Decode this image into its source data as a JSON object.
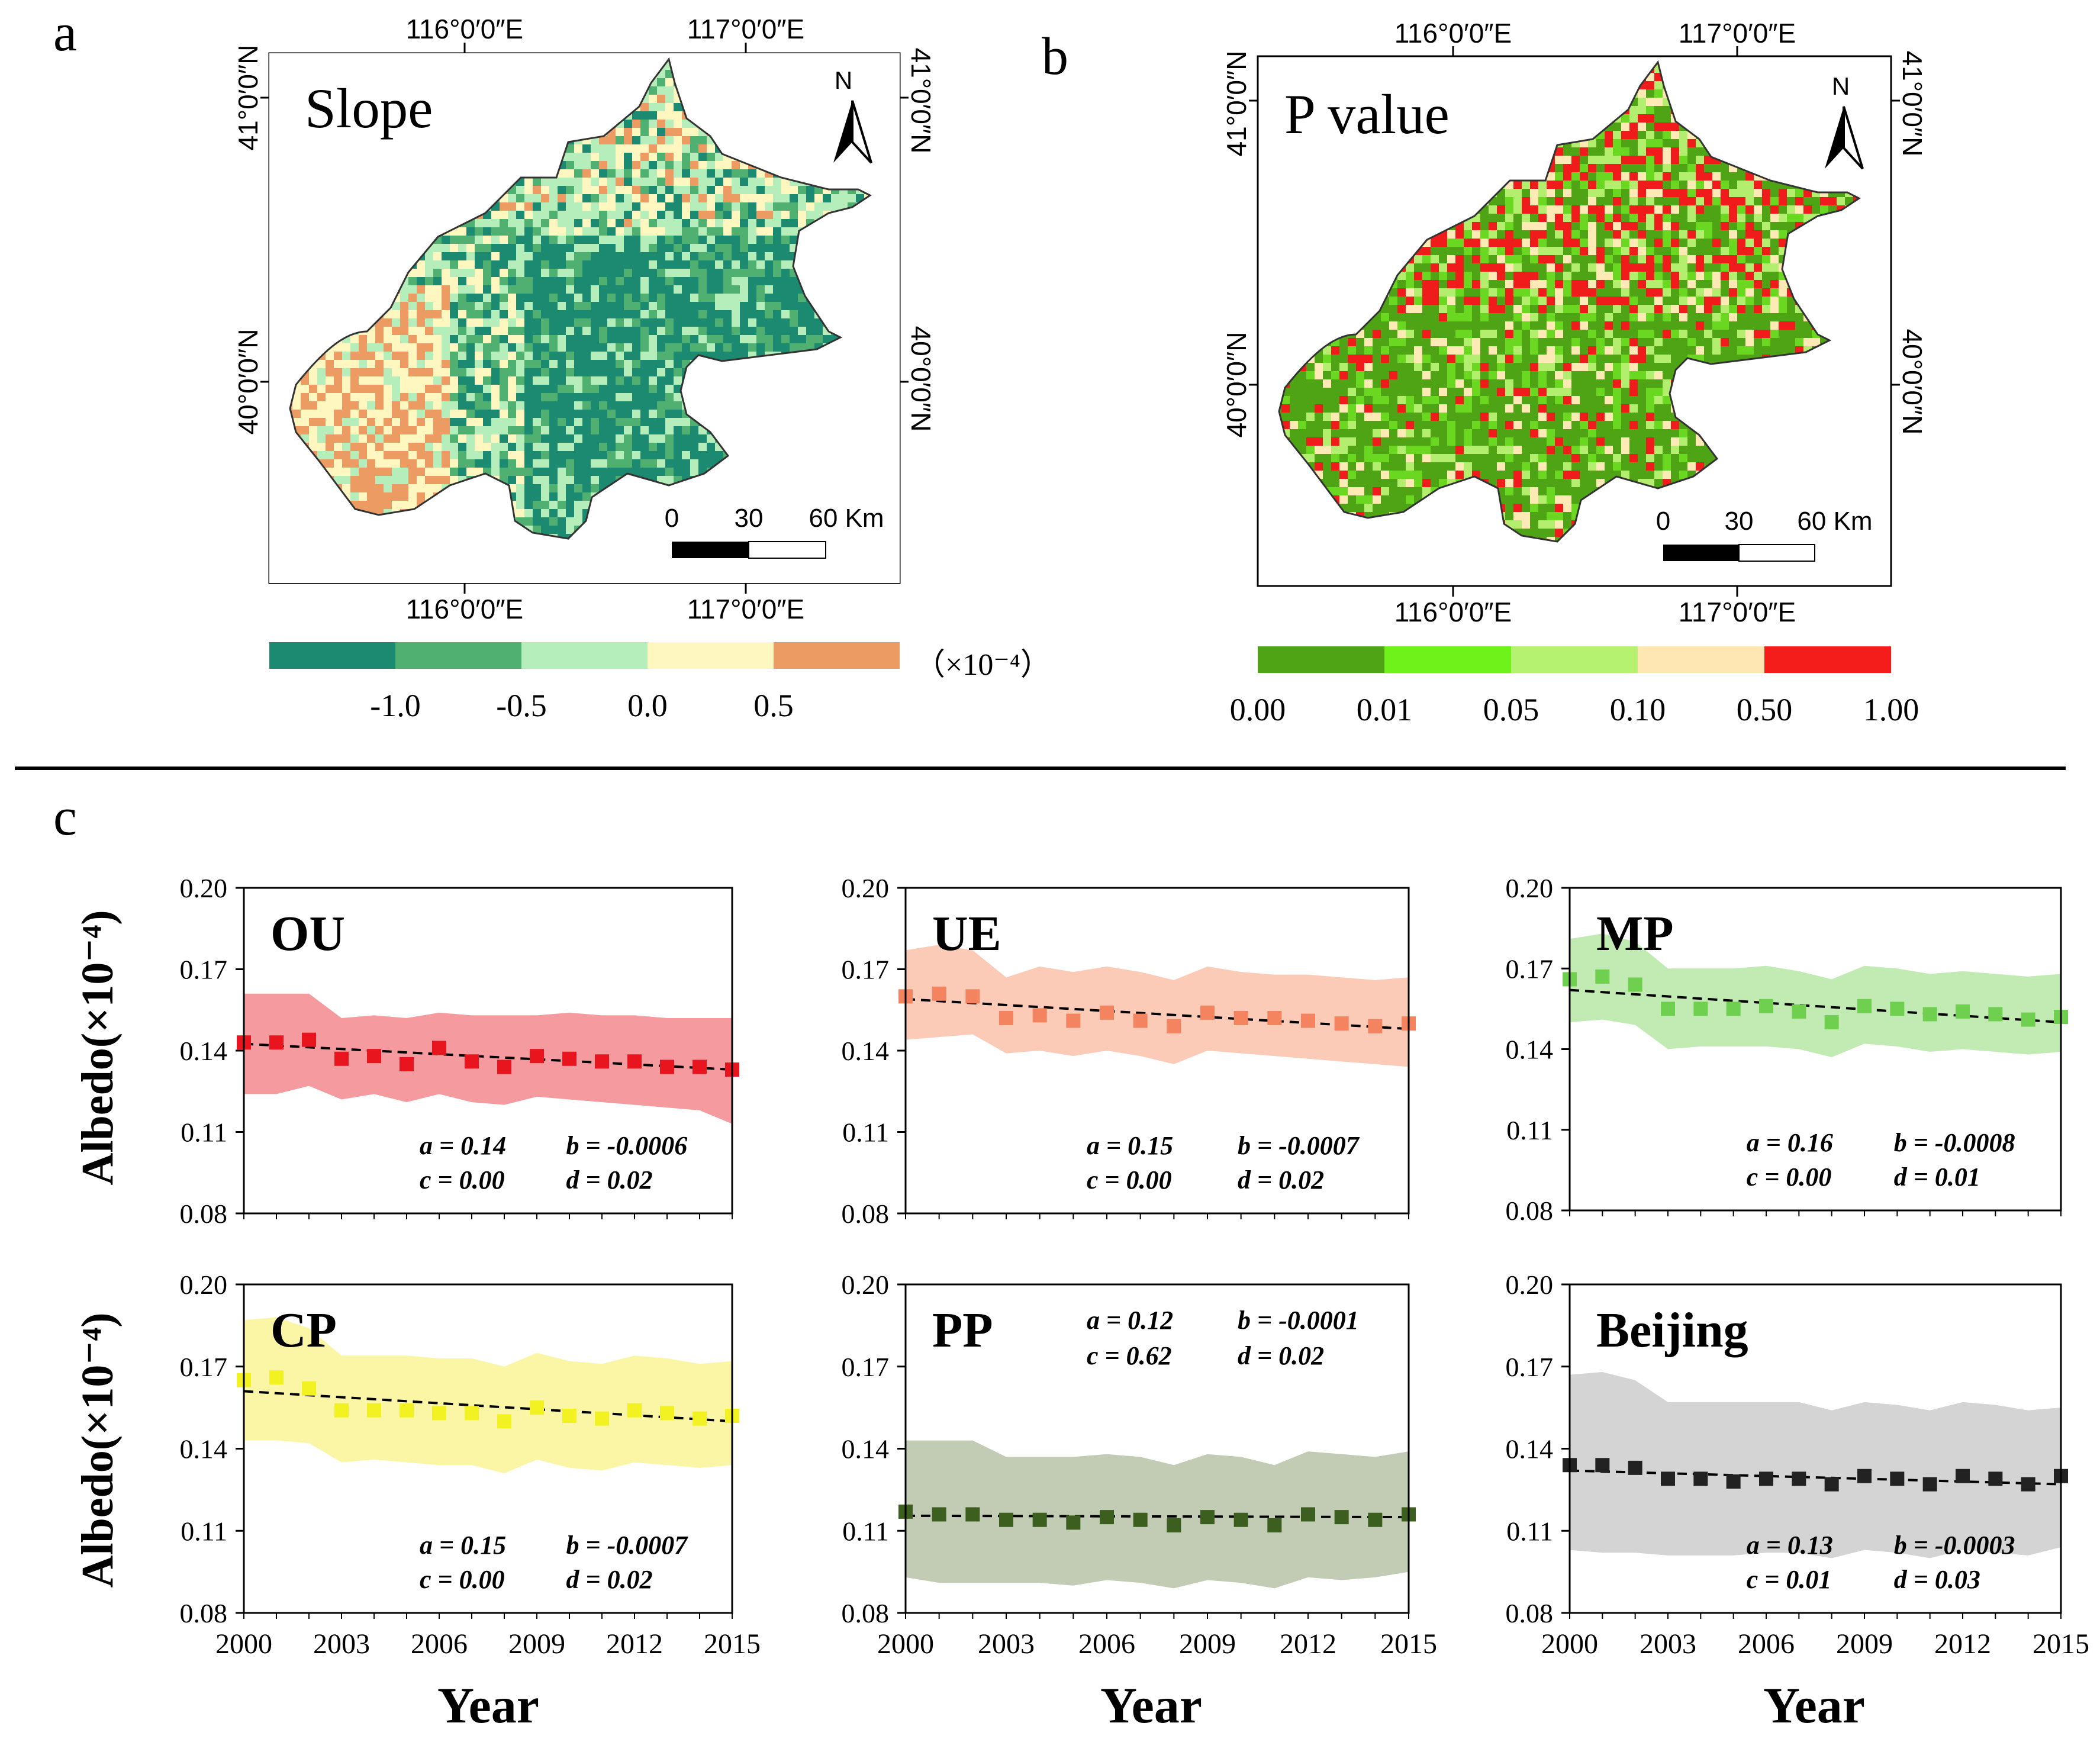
{
  "panel_labels": {
    "a": "a",
    "b": "b",
    "c": "c"
  },
  "maps": [
    {
      "id": "a",
      "title": "Slope",
      "north": "N",
      "lon_top": [
        "116°0′0″E",
        "117°0′0″E"
      ],
      "lon_bottom": [
        "116°0′0″E",
        "117°0′0″E"
      ],
      "lat_left": [
        "41°0′0″N",
        "40°0′0″N"
      ],
      "lat_right": [
        "41°0′0″N",
        "40°0′0″N"
      ],
      "scale_labels": [
        "0",
        "30",
        "60 Km"
      ],
      "palette": [
        "#1b8a70",
        "#4fb072",
        "#b6eebb",
        "#fff6c0",
        "#ec9b63"
      ],
      "legend_colors": [
        "#1b8a70",
        "#4fb072",
        "#b6eebb",
        "#fff6c0",
        "#ec9b63"
      ],
      "legend_ticks": [
        "-1.0",
        "-0.5",
        "0.0",
        "0.5"
      ],
      "legend_unit": "（×10⁻⁴）"
    },
    {
      "id": "b",
      "title": "P value",
      "north": "N",
      "lon_top": [
        "116°0′0″E",
        "117°0′0″E"
      ],
      "lon_bottom": [
        "116°0′0″E",
        "117°0′0″E"
      ],
      "lat_left": [
        "41°0′0″N",
        "40°0′0″N"
      ],
      "lat_right": [
        "41°0′0″N",
        "40°0′0″N"
      ],
      "scale_labels": [
        "0",
        "30",
        "60 Km"
      ],
      "palette": [
        "#4ea414",
        "#4ea414",
        "#6ad821",
        "#b4ee6e",
        "#ffe9b4",
        "#f01c1c"
      ],
      "legend_colors": [
        "#4ea414",
        "#6ef21a",
        "#b4f270",
        "#ffe7b4",
        "#f51c1c"
      ],
      "legend_ticks": [
        "0.00",
        "0.01",
        "0.05",
        "0.10",
        "0.50",
        "1.00"
      ],
      "legend_unit": ""
    }
  ],
  "axes_text": {
    "ylabel": "Albedo(×10⁻⁴)",
    "xlabel": "Year"
  },
  "chart_data": [
    {
      "type": "scatter",
      "title": "OU",
      "marker": "#e8141e",
      "band": "#f59a9e",
      "x": [
        2000,
        2001,
        2002,
        2003,
        2004,
        2005,
        2006,
        2007,
        2008,
        2009,
        2010,
        2011,
        2012,
        2013,
        2014,
        2015
      ],
      "values": [
        0.143,
        0.143,
        0.144,
        0.137,
        0.138,
        0.135,
        0.141,
        0.136,
        0.134,
        0.138,
        0.137,
        0.136,
        0.136,
        0.134,
        0.134,
        0.133
      ],
      "band_upper": [
        0.161,
        0.161,
        0.161,
        0.152,
        0.153,
        0.152,
        0.154,
        0.153,
        0.153,
        0.153,
        0.154,
        0.153,
        0.153,
        0.152,
        0.152,
        0.152
      ],
      "band_lower": [
        0.124,
        0.124,
        0.127,
        0.122,
        0.124,
        0.121,
        0.124,
        0.121,
        0.12,
        0.123,
        0.122,
        0.121,
        0.12,
        0.119,
        0.118,
        0.113
      ],
      "trend": [
        0.1425,
        0.133
      ],
      "stats": [
        [
          "a = 0.14",
          "b = -0.0006"
        ],
        [
          "c = 0.00",
          "d = 0.02"
        ]
      ],
      "stats_pos": "bottom",
      "ylim": [
        0.08,
        0.2
      ],
      "yticks": [
        "0.20",
        "0.17",
        "0.14",
        "0.11",
        "0.08"
      ],
      "xticks": [
        "2000",
        "2003",
        "2006",
        "2009",
        "2012",
        "2015"
      ],
      "show_xticks": false
    },
    {
      "type": "scatter",
      "title": "UE",
      "marker": "#f4845f",
      "band": "#fbcbb8",
      "x": [
        2000,
        2001,
        2002,
        2003,
        2004,
        2005,
        2006,
        2007,
        2008,
        2009,
        2010,
        2011,
        2012,
        2013,
        2014,
        2015
      ],
      "values": [
        0.16,
        0.161,
        0.16,
        0.152,
        0.153,
        0.151,
        0.154,
        0.151,
        0.149,
        0.154,
        0.152,
        0.152,
        0.151,
        0.15,
        0.149,
        0.15
      ],
      "band_upper": [
        0.177,
        0.179,
        0.177,
        0.167,
        0.171,
        0.169,
        0.171,
        0.169,
        0.166,
        0.171,
        0.169,
        0.168,
        0.168,
        0.167,
        0.166,
        0.167
      ],
      "band_lower": [
        0.144,
        0.145,
        0.146,
        0.139,
        0.14,
        0.138,
        0.14,
        0.138,
        0.135,
        0.14,
        0.139,
        0.138,
        0.137,
        0.136,
        0.135,
        0.134
      ],
      "trend": [
        0.159,
        0.148
      ],
      "stats": [
        [
          "a = 0.15",
          "b = -0.0007"
        ],
        [
          "c = 0.00",
          "d = 0.02"
        ]
      ],
      "stats_pos": "bottom",
      "ylim": [
        0.08,
        0.2
      ],
      "yticks": [
        "0.20",
        "0.17",
        "0.14",
        "0.11",
        "0.08"
      ],
      "xticks": [
        "2000",
        "2003",
        "2006",
        "2009",
        "2012",
        "2015"
      ],
      "show_xticks": false
    },
    {
      "type": "scatter",
      "title": "MP",
      "marker": "#6fcf4e",
      "band": "#c2ebb4",
      "x": [
        2000,
        2001,
        2002,
        2003,
        2004,
        2005,
        2006,
        2007,
        2008,
        2009,
        2010,
        2011,
        2012,
        2013,
        2014,
        2015
      ],
      "values": [
        0.166,
        0.167,
        0.164,
        0.155,
        0.155,
        0.155,
        0.156,
        0.154,
        0.15,
        0.156,
        0.155,
        0.153,
        0.154,
        0.153,
        0.151,
        0.152
      ],
      "band_upper": [
        0.181,
        0.183,
        0.18,
        0.17,
        0.17,
        0.17,
        0.171,
        0.169,
        0.166,
        0.171,
        0.17,
        0.168,
        0.169,
        0.168,
        0.167,
        0.168
      ],
      "band_lower": [
        0.15,
        0.151,
        0.149,
        0.14,
        0.141,
        0.141,
        0.141,
        0.14,
        0.137,
        0.142,
        0.141,
        0.139,
        0.14,
        0.139,
        0.138,
        0.139
      ],
      "trend": [
        0.162,
        0.15
      ],
      "stats": [
        [
          "a = 0.16",
          "b = -0.0008"
        ],
        [
          "c = 0.00",
          "d = 0.01"
        ]
      ],
      "stats_pos": "bottom",
      "ylim": [
        0.08,
        0.2
      ],
      "yticks": [
        "0.20",
        "0.17",
        "0.14",
        "0.11",
        "0.08"
      ],
      "xticks": [
        "2000",
        "2003",
        "2006",
        "2009",
        "2012",
        "2015"
      ],
      "show_xticks": false
    },
    {
      "type": "scatter",
      "title": "CP",
      "marker": "#f2f222",
      "band": "#fbf6a6",
      "x": [
        2000,
        2001,
        2002,
        2003,
        2004,
        2005,
        2006,
        2007,
        2008,
        2009,
        2010,
        2011,
        2012,
        2013,
        2014,
        2015
      ],
      "values": [
        0.165,
        0.166,
        0.162,
        0.154,
        0.154,
        0.154,
        0.153,
        0.153,
        0.15,
        0.155,
        0.152,
        0.151,
        0.154,
        0.153,
        0.151,
        0.152
      ],
      "band_upper": [
        0.187,
        0.188,
        0.184,
        0.174,
        0.174,
        0.174,
        0.173,
        0.173,
        0.17,
        0.175,
        0.172,
        0.171,
        0.174,
        0.173,
        0.171,
        0.172
      ],
      "band_lower": [
        0.143,
        0.143,
        0.142,
        0.135,
        0.136,
        0.135,
        0.134,
        0.134,
        0.131,
        0.136,
        0.133,
        0.132,
        0.135,
        0.134,
        0.133,
        0.134
      ],
      "trend": [
        0.161,
        0.15
      ],
      "stats": [
        [
          "a = 0.15",
          "b = -0.0007"
        ],
        [
          "c = 0.00",
          "d = 0.02"
        ]
      ],
      "stats_pos": "bottom",
      "ylim": [
        0.08,
        0.2
      ],
      "yticks": [
        "0.20",
        "0.17",
        "0.14",
        "0.11",
        "0.08"
      ],
      "xticks": [
        "2000",
        "2003",
        "2006",
        "2009",
        "2012",
        "2015"
      ],
      "show_xticks": true
    },
    {
      "type": "scatter",
      "title": "PP",
      "marker": "#3c5e1e",
      "band": "#c2cbb4",
      "x": [
        2000,
        2001,
        2002,
        2003,
        2004,
        2005,
        2006,
        2007,
        2008,
        2009,
        2010,
        2011,
        2012,
        2013,
        2014,
        2015
      ],
      "values": [
        0.117,
        0.116,
        0.116,
        0.114,
        0.114,
        0.113,
        0.115,
        0.114,
        0.112,
        0.115,
        0.114,
        0.112,
        0.116,
        0.115,
        0.114,
        0.116
      ],
      "band_upper": [
        0.143,
        0.143,
        0.143,
        0.137,
        0.137,
        0.137,
        0.138,
        0.137,
        0.134,
        0.138,
        0.137,
        0.134,
        0.139,
        0.138,
        0.137,
        0.139
      ],
      "band_lower": [
        0.093,
        0.091,
        0.091,
        0.091,
        0.091,
        0.09,
        0.092,
        0.091,
        0.089,
        0.092,
        0.091,
        0.089,
        0.093,
        0.092,
        0.093,
        0.095
      ],
      "trend": [
        0.1155,
        0.115
      ],
      "stats": [
        [
          "a = 0.12",
          "b = -0.0001"
        ],
        [
          "c = 0.62",
          "d = 0.02"
        ]
      ],
      "stats_pos": "top",
      "ylim": [
        0.08,
        0.2
      ],
      "yticks": [
        "0.20",
        "0.17",
        "0.14",
        "0.11",
        "0.08"
      ],
      "xticks": [
        "2000",
        "2003",
        "2006",
        "2009",
        "2012",
        "2015"
      ],
      "show_xticks": true
    },
    {
      "type": "scatter",
      "title": "Beijing",
      "marker": "#222222",
      "band": "#d4d4d4",
      "x": [
        2000,
        2001,
        2002,
        2003,
        2004,
        2005,
        2006,
        2007,
        2008,
        2009,
        2010,
        2011,
        2012,
        2013,
        2014,
        2015
      ],
      "values": [
        0.134,
        0.134,
        0.133,
        0.129,
        0.129,
        0.128,
        0.129,
        0.129,
        0.127,
        0.13,
        0.129,
        0.127,
        0.13,
        0.129,
        0.127,
        0.13
      ],
      "band_upper": [
        0.167,
        0.168,
        0.165,
        0.157,
        0.157,
        0.157,
        0.157,
        0.157,
        0.154,
        0.157,
        0.156,
        0.154,
        0.157,
        0.156,
        0.154,
        0.155
      ],
      "band_lower": [
        0.103,
        0.102,
        0.102,
        0.101,
        0.101,
        0.101,
        0.102,
        0.102,
        0.1,
        0.103,
        0.102,
        0.1,
        0.103,
        0.102,
        0.101,
        0.104
      ],
      "trend": [
        0.132,
        0.127
      ],
      "stats": [
        [
          "a = 0.13",
          "b = -0.0003"
        ],
        [
          "c = 0.01",
          "d = 0.03"
        ]
      ],
      "stats_pos": "bottom",
      "ylim": [
        0.08,
        0.2
      ],
      "yticks": [
        "0.20",
        "0.17",
        "0.14",
        "0.11",
        "0.08"
      ],
      "xticks": [
        "2000",
        "2003",
        "2006",
        "2009",
        "2012",
        "2015"
      ],
      "show_xticks": true
    }
  ]
}
